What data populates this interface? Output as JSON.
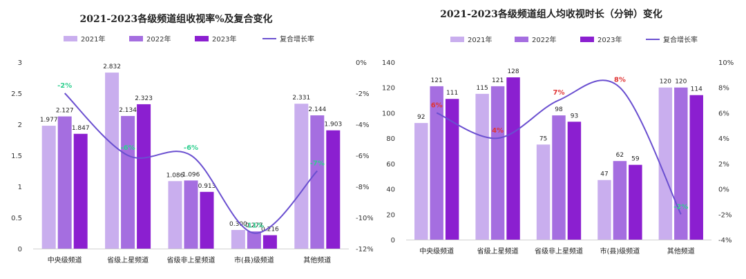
{
  "colors": {
    "y2021": "#c9aeee",
    "y2022": "#a56ee0",
    "y2023": "#8b1fd0",
    "line": "#6a4fd0",
    "green": "#2fcf8f",
    "red": "#e03535"
  },
  "chart_data": [
    {
      "type": "bar",
      "title": "2021-2023各级频道组收视率%及复合变化",
      "categories": [
        "中央级频道",
        "省级上星频道",
        "省级非上星频道",
        "市(县)级频道",
        "其他频道"
      ],
      "series": [
        {
          "name": "2021年",
          "values": [
            1.977,
            2.832,
            1.086,
            0.3,
            2.331
          ]
        },
        {
          "name": "2022年",
          "values": [
            2.127,
            2.134,
            1.096,
            0.277,
            2.144
          ]
        },
        {
          "name": "2023年",
          "values": [
            1.847,
            2.323,
            0.913,
            0.216,
            1.903
          ]
        }
      ],
      "value_labels": [
        [
          "1.977",
          "2.832",
          "1.086",
          "0.300",
          "2.331"
        ],
        [
          "2.127",
          "2.134",
          "1.096",
          "0.277",
          "2.144"
        ],
        [
          "1.847",
          "2.323",
          "0.913",
          "0.216",
          "1.903"
        ]
      ],
      "line_series": {
        "name": "复合增长率",
        "values": [
          -2,
          -6,
          -6,
          -11,
          -7
        ],
        "labels": [
          "-2%",
          "-6%",
          "-6%",
          "-11%",
          "-7%"
        ],
        "label_colors": [
          "green",
          "green",
          "green",
          "green",
          "green"
        ]
      },
      "ylim": [
        0,
        3
      ],
      "yticks": [
        0,
        0.5,
        1,
        1.5,
        2,
        2.5,
        3
      ],
      "ytick_labels": [
        "0",
        "0.5",
        "1",
        "1.5",
        "2",
        "2.5",
        "3"
      ],
      "y2lim": [
        -12,
        0
      ],
      "y2ticks": [
        -12,
        -10,
        -8,
        -6,
        -4,
        -2,
        0
      ],
      "y2tick_labels": [
        "-12%",
        "-10%",
        "-8%",
        "-6%",
        "-4%",
        "-2%",
        "0%"
      ],
      "legend": [
        "2021年",
        "2022年",
        "2023年",
        "复合增长率"
      ],
      "legend_position": "top"
    },
    {
      "type": "bar",
      "title": "2021-2023各级频道组人均收视时长（分钟）变化",
      "categories": [
        "中央级频道",
        "省级上星频道",
        "省级非上星频道",
        "市(县)级频道",
        "其他频道"
      ],
      "series": [
        {
          "name": "2021年",
          "values": [
            92,
            115,
            75,
            47,
            120
          ]
        },
        {
          "name": "2022年",
          "values": [
            121,
            121,
            98,
            62,
            120
          ]
        },
        {
          "name": "2023年",
          "values": [
            111,
            128,
            93,
            59,
            114
          ]
        }
      ],
      "value_labels": [
        [
          "92",
          "115",
          "75",
          "47",
          "120"
        ],
        [
          "121",
          "121",
          "98",
          "62",
          "120"
        ],
        [
          "111",
          "128",
          "93",
          "59",
          "114"
        ]
      ],
      "line_series": {
        "name": "复合增长率",
        "values": [
          6,
          4,
          7,
          8,
          -2
        ],
        "labels": [
          "6%",
          "4%",
          "7%",
          "8%",
          "-2%"
        ],
        "label_colors": [
          "red",
          "red",
          "red",
          "red",
          "green"
        ]
      },
      "ylim": [
        0,
        140
      ],
      "yticks": [
        0,
        20,
        40,
        60,
        80,
        100,
        120,
        140
      ],
      "ytick_labels": [
        "0",
        "20",
        "40",
        "60",
        "80",
        "100",
        "120",
        "140"
      ],
      "y2lim": [
        -4,
        10
      ],
      "y2ticks": [
        -4,
        -2,
        0,
        2,
        4,
        6,
        8,
        10
      ],
      "y2tick_labels": [
        "-4%",
        "-2%",
        "0%",
        "2%",
        "4%",
        "6%",
        "8%",
        "10%"
      ],
      "legend": [
        "2021年",
        "2022年",
        "2023年",
        "复合增长率"
      ],
      "legend_position": "top"
    }
  ]
}
